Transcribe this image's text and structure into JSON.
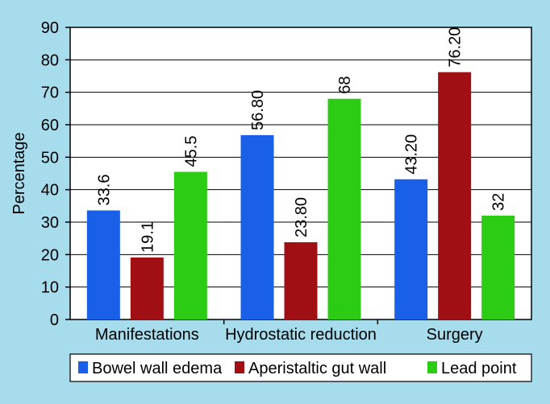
{
  "chart_data": {
    "type": "bar",
    "title": "",
    "xlabel": "",
    "ylabel": "Percentage",
    "ylim": [
      0,
      90
    ],
    "yticks": [
      0,
      10,
      20,
      30,
      40,
      50,
      60,
      70,
      80,
      90
    ],
    "grid": true,
    "legend_position": "bottom",
    "categories": [
      "Manifestations",
      "Hydrostatic reduction",
      "Surgery"
    ],
    "series": [
      {
        "name": "Bowel wall edema",
        "color": "#1a5fe8",
        "values": [
          33.6,
          56.8,
          43.2
        ],
        "labels": [
          "33.6",
          "56.80",
          "43.20"
        ]
      },
      {
        "name": "Aperistaltic gut wall",
        "color": "#a00f14",
        "values": [
          19.1,
          23.8,
          76.2
        ],
        "labels": [
          "19.1",
          "23.80",
          "76.20"
        ]
      },
      {
        "name": "Lead point",
        "color": "#2ccc14",
        "values": [
          45.5,
          68,
          32
        ],
        "labels": [
          "45.5",
          "68",
          "32"
        ]
      }
    ]
  },
  "colors": {
    "background": "#a6dcec",
    "plot_bg": "#ffffff"
  }
}
